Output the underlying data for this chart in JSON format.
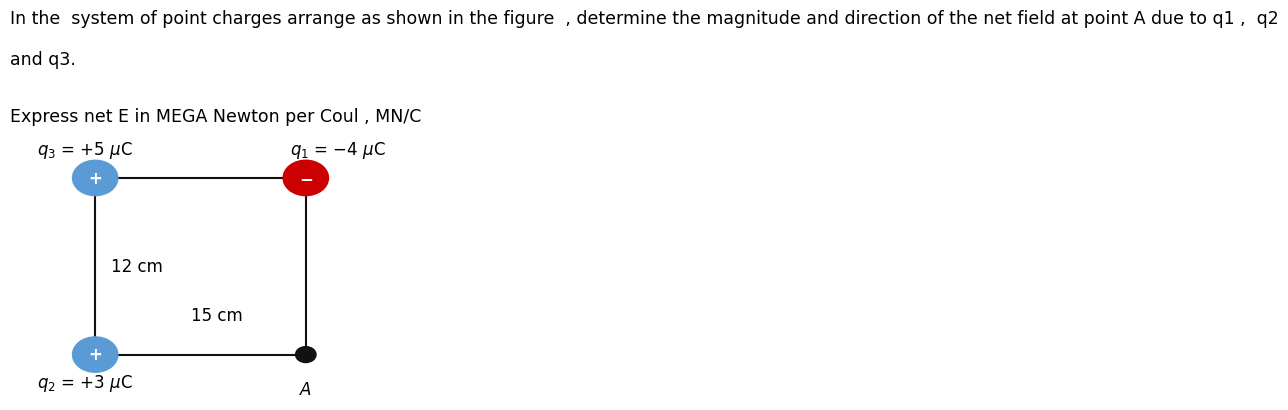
{
  "title_line1": "In the  system of point charges arrange as shown in the figure  , determine the magnitude and direction of the net field at point A due to q1 ,  q2",
  "title_line2": "and q3.",
  "subtitle": "Express net E in MEGA Newton per Coul , MN/C",
  "q3_label": "$q_3$ = +5 $\\mu$C",
  "q1_label": "$q_1$ = −4 $\\mu$C",
  "q2_label": "$q_2$ = +3 $\\mu$C",
  "A_label": "A",
  "dim_vertical": "12 cm",
  "dim_horizontal": "15 cm",
  "bg_color": "#ffffff",
  "text_color": "#000000",
  "q3_color": "#5B9BD5",
  "q1_color": "#CC0000",
  "q2_color": "#5B9BD5",
  "A_color": "#111111",
  "line_color": "#111111",
  "title_fontsize": 12.5,
  "label_fontsize": 12,
  "dim_fontsize": 12,
  "q3_symbol": "+",
  "q1_symbol": "−",
  "q2_symbol": "+"
}
